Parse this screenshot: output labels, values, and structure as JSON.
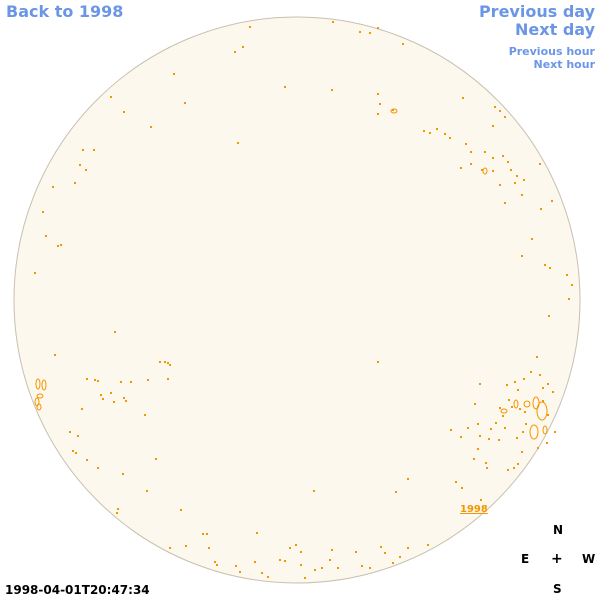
{
  "nav": {
    "back": "Back to 1998",
    "previous_day": "Previous day",
    "next_day": "Next day",
    "previous_hour": "Previous hour",
    "next_hour": "Next hour"
  },
  "disk": {
    "fill_color": "#fdf8ee",
    "rim_color": "#c8c0b0",
    "contour_color": "#f39600"
  },
  "year_label": "1998",
  "compass": {
    "north": "N",
    "east": "E",
    "center": "+",
    "west": "W",
    "south": "S"
  },
  "timestamp": "1998-04-01T20:47:34"
}
